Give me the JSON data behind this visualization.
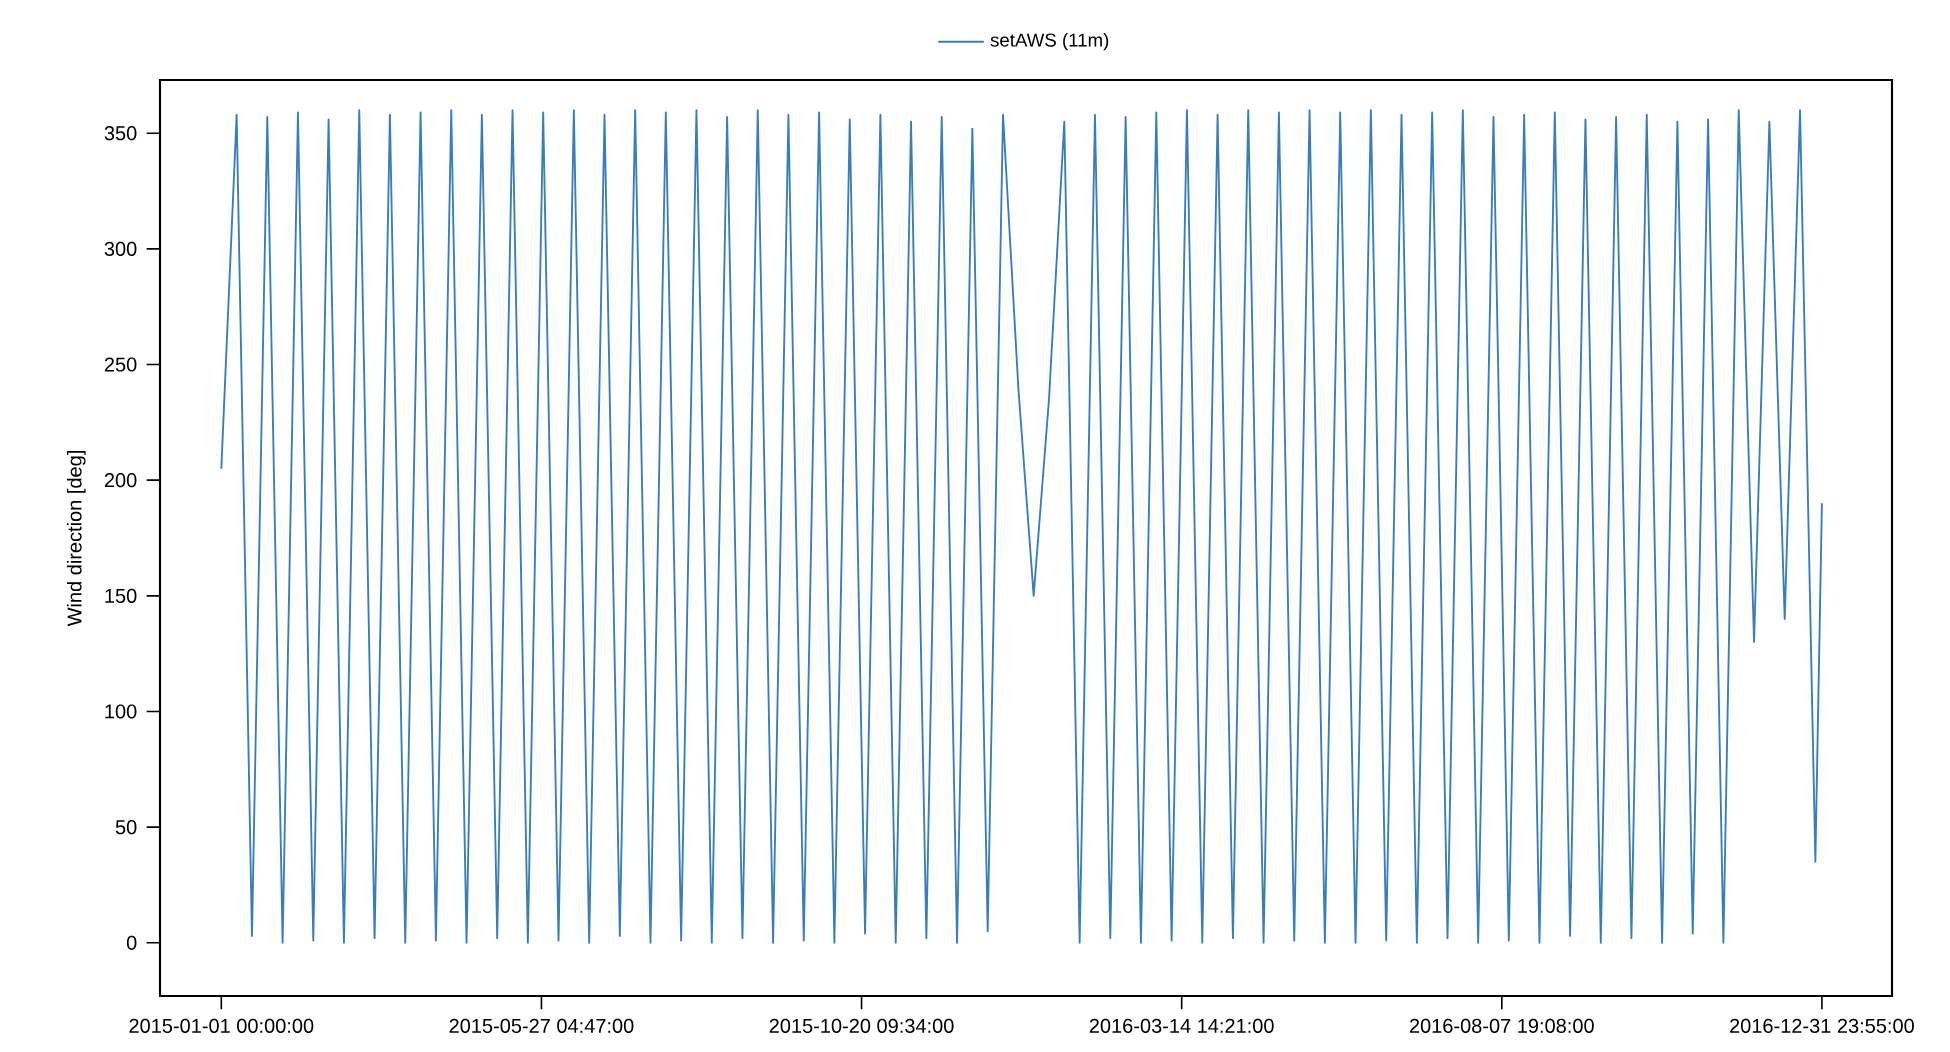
{
  "chart_data": {
    "type": "line",
    "ylabel": "Wind direction [deg]",
    "legend": "top",
    "xlim": [
      "2014-12-04",
      "2017-02-02"
    ],
    "ylim": [
      -23,
      373
    ],
    "xticks": [
      {
        "value": "2015-01-01T00:00",
        "label": "2015-01-01 00:00:00"
      },
      {
        "value": "2015-05-27T04:47",
        "label": "2015-05-27 04:47:00"
      },
      {
        "value": "2015-10-20T09:34",
        "label": "2015-10-20 09:34:00"
      },
      {
        "value": "2016-03-14T14:21",
        "label": "2016-03-14 14:21:00"
      },
      {
        "value": "2016-08-07T19:08",
        "label": "2016-08-07 19:08:00"
      },
      {
        "value": "2016-12-31T23:55",
        "label": "2016-12-31 23:55:00"
      }
    ],
    "yticks": [
      0,
      50,
      100,
      150,
      200,
      250,
      300,
      350
    ],
    "x": [
      "2015-01-01",
      "2015-01-08",
      "2015-01-15",
      "2015-01-22",
      "2015-01-29",
      "2015-02-05",
      "2015-02-12",
      "2015-02-19",
      "2015-02-26",
      "2015-03-05",
      "2015-03-12",
      "2015-03-19",
      "2015-03-26",
      "2015-04-02",
      "2015-04-09",
      "2015-04-16",
      "2015-04-23",
      "2015-04-30",
      "2015-05-07",
      "2015-05-14",
      "2015-05-21",
      "2015-05-28",
      "2015-06-04",
      "2015-06-11",
      "2015-06-18",
      "2015-06-25",
      "2015-07-02",
      "2015-07-09",
      "2015-07-16",
      "2015-07-23",
      "2015-07-30",
      "2015-08-06",
      "2015-08-13",
      "2015-08-20",
      "2015-08-27",
      "2015-09-03",
      "2015-09-10",
      "2015-09-17",
      "2015-09-24",
      "2015-10-01",
      "2015-10-08",
      "2015-10-15",
      "2015-10-22",
      "2015-10-29",
      "2015-11-05",
      "2015-11-12",
      "2015-11-19",
      "2015-11-26",
      "2015-12-03",
      "2015-12-10",
      "2015-12-17",
      "2015-12-24",
      "2015-12-31",
      "2016-01-07",
      "2016-01-14",
      "2016-01-21",
      "2016-01-28",
      "2016-02-04",
      "2016-02-11",
      "2016-02-18",
      "2016-02-25",
      "2016-03-03",
      "2016-03-10",
      "2016-03-17",
      "2016-03-24",
      "2016-03-31",
      "2016-04-07",
      "2016-04-14",
      "2016-04-21",
      "2016-04-28",
      "2016-05-05",
      "2016-05-12",
      "2016-05-19",
      "2016-05-26",
      "2016-06-02",
      "2016-06-09",
      "2016-06-16",
      "2016-06-23",
      "2016-06-30",
      "2016-07-07",
      "2016-07-14",
      "2016-07-21",
      "2016-07-28",
      "2016-08-04",
      "2016-08-11",
      "2016-08-18",
      "2016-08-25",
      "2016-09-01",
      "2016-09-08",
      "2016-09-15",
      "2016-09-22",
      "2016-09-29",
      "2016-10-06",
      "2016-10-13",
      "2016-10-20",
      "2016-10-27",
      "2016-11-03",
      "2016-11-10",
      "2016-11-17",
      "2016-11-24",
      "2016-12-01",
      "2016-12-08",
      "2016-12-15",
      "2016-12-22",
      "2016-12-29",
      "2016-12-31T23:55"
    ],
    "series": [
      {
        "name": "setAWS (11m)",
        "color": "#3a7dbb",
        "line_style": "solid",
        "values": [
          205,
          358,
          3,
          357,
          0,
          359,
          1,
          356,
          0,
          360,
          2,
          358,
          0,
          359,
          1,
          360,
          0,
          358,
          2,
          360,
          0,
          359,
          1,
          360,
          0,
          358,
          3,
          360,
          0,
          359,
          1,
          360,
          0,
          357,
          2,
          360,
          0,
          358,
          1,
          359,
          0,
          356,
          4,
          358,
          0,
          355,
          2,
          357,
          0,
          352,
          5,
          358,
          240,
          150,
          235,
          355,
          0,
          358,
          2,
          357,
          0,
          359,
          1,
          360,
          0,
          358,
          2,
          360,
          0,
          359,
          1,
          360,
          0,
          359,
          0,
          360,
          1,
          358,
          0,
          359,
          2,
          360,
          0,
          357,
          1,
          358,
          0,
          359,
          3,
          356,
          0,
          357,
          2,
          358,
          0,
          355,
          4,
          356,
          0,
          360,
          130,
          355,
          140,
          360,
          35,
          190
        ]
      }
    ]
  }
}
